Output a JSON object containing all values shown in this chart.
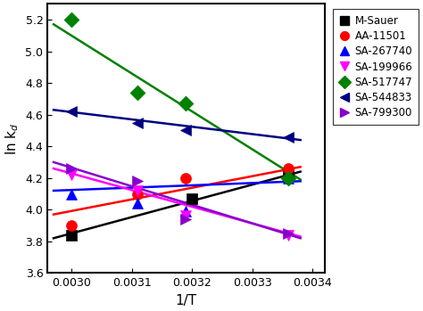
{
  "title": "",
  "xlabel": "1/T",
  "ylabel": "ln k_d",
  "xlim": [
    0.00296,
    0.00342
  ],
  "ylim": [
    3.6,
    5.3
  ],
  "xticks": [
    0.003,
    0.0031,
    0.0032,
    0.0033,
    0.0034
  ],
  "yticks": [
    3.6,
    3.8,
    4.0,
    4.2,
    4.4,
    4.6,
    4.8,
    5.0,
    5.2
  ],
  "series": [
    {
      "label": "M-Sauer",
      "color": "#000000",
      "marker": "s",
      "markersize": 7,
      "points_x": [
        0.003,
        0.0032,
        0.00336
      ],
      "points_y": [
        3.84,
        4.07,
        4.22
      ],
      "line_x": [
        0.00297,
        0.00338
      ],
      "line_y": [
        3.82,
        4.24
      ]
    },
    {
      "label": "AA-11501",
      "color": "#ff0000",
      "marker": "o",
      "markersize": 7,
      "points_x": [
        0.003,
        0.00311,
        0.00319,
        0.00336
      ],
      "points_y": [
        3.9,
        4.1,
        4.2,
        4.26
      ],
      "line_x": [
        0.00297,
        0.00338
      ],
      "line_y": [
        3.97,
        4.27
      ]
    },
    {
      "label": "SA-267740",
      "color": "#0000ff",
      "marker": "^",
      "markersize": 7,
      "points_x": [
        0.003,
        0.00311,
        0.00319,
        0.00336
      ],
      "points_y": [
        4.1,
        4.04,
        3.99,
        4.2
      ],
      "line_x": [
        0.00297,
        0.00338
      ],
      "line_y": [
        4.12,
        4.18
      ]
    },
    {
      "label": "SA-199966",
      "color": "#ff00ff",
      "marker": "v",
      "markersize": 7,
      "points_x": [
        0.003,
        0.00311,
        0.00319,
        0.00336
      ],
      "points_y": [
        4.22,
        4.12,
        3.96,
        3.84
      ],
      "line_x": [
        0.00297,
        0.00338
      ],
      "line_y": [
        4.26,
        3.83
      ]
    },
    {
      "label": "SA-517747",
      "color": "#008000",
      "marker": "D",
      "markersize": 7,
      "points_x": [
        0.003,
        0.00311,
        0.00319,
        0.00336
      ],
      "points_y": [
        5.2,
        4.74,
        4.67,
        4.2
      ],
      "line_x": [
        0.00297,
        0.00338
      ],
      "line_y": [
        5.17,
        4.19
      ]
    },
    {
      "label": "SA-544833",
      "color": "#000080",
      "marker": "<",
      "markersize": 7,
      "points_x": [
        0.003,
        0.00311,
        0.00319,
        0.00336
      ],
      "points_y": [
        4.62,
        4.55,
        4.5,
        4.46
      ],
      "line_x": [
        0.00297,
        0.00338
      ],
      "line_y": [
        4.63,
        4.44
      ]
    },
    {
      "label": "SA-799300",
      "color": "#8800cc",
      "marker": ">",
      "markersize": 7,
      "points_x": [
        0.003,
        0.00311,
        0.00319,
        0.00336
      ],
      "points_y": [
        4.26,
        4.18,
        3.94,
        3.85
      ],
      "line_x": [
        0.00297,
        0.00338
      ],
      "line_y": [
        4.3,
        3.82
      ]
    }
  ],
  "background_color": "#ffffff",
  "figsize": [
    4.74,
    3.49
  ],
  "dpi": 100
}
